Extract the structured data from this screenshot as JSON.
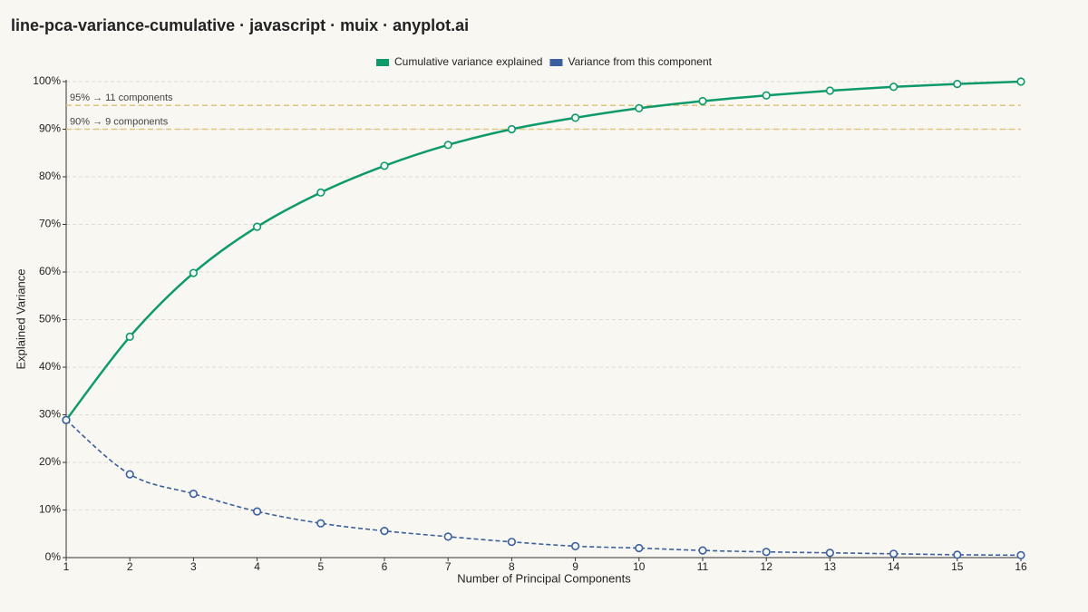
{
  "chart_data": {
    "type": "line",
    "title": "line-pca-variance-cumulative · javascript · muix · anyplot.ai",
    "x_label": "Number of Principal Components",
    "y_label": "Explained Variance",
    "x": [
      1,
      2,
      3,
      4,
      5,
      6,
      7,
      8,
      9,
      10,
      11,
      12,
      13,
      14,
      15,
      16
    ],
    "series": [
      {
        "name": "Cumulative variance explained",
        "color": "#0f9a6c",
        "dashed": false,
        "values": [
          28.9,
          46.4,
          59.8,
          69.5,
          76.7,
          82.3,
          86.7,
          90.0,
          92.4,
          94.4,
          95.9,
          97.1,
          98.1,
          98.9,
          99.5,
          100.0
        ]
      },
      {
        "name": "Variance from this component",
        "color": "#3c5f9e",
        "dashed": true,
        "values": [
          28.9,
          17.5,
          13.4,
          9.7,
          7.2,
          5.6,
          4.4,
          3.3,
          2.4,
          2.0,
          1.5,
          1.2,
          1.0,
          0.8,
          0.6,
          0.5
        ]
      }
    ],
    "thresholds": [
      {
        "value": 95,
        "label": "95% → 11 components"
      },
      {
        "value": 90,
        "label": "90% → 9 components"
      }
    ],
    "threshold_color": "#e2c57a",
    "xlim": [
      1,
      16
    ],
    "xticks": [
      1,
      2,
      3,
      4,
      5,
      6,
      7,
      8,
      9,
      10,
      11,
      12,
      13,
      14,
      15,
      16
    ],
    "ylim": [
      0,
      100
    ],
    "yticks": [
      {
        "value": 0,
        "label": "0%"
      },
      {
        "value": 10,
        "label": "10%"
      },
      {
        "value": 20,
        "label": "20%"
      },
      {
        "value": 30,
        "label": "30%"
      },
      {
        "value": 40,
        "label": "40%"
      },
      {
        "value": 50,
        "label": "50%"
      },
      {
        "value": 60,
        "label": "60%"
      },
      {
        "value": 70,
        "label": "70%"
      },
      {
        "value": 80,
        "label": "80%"
      },
      {
        "value": 90,
        "label": "90%"
      },
      {
        "value": 100,
        "label": "100%"
      }
    ],
    "grid": true,
    "legend": "top"
  }
}
